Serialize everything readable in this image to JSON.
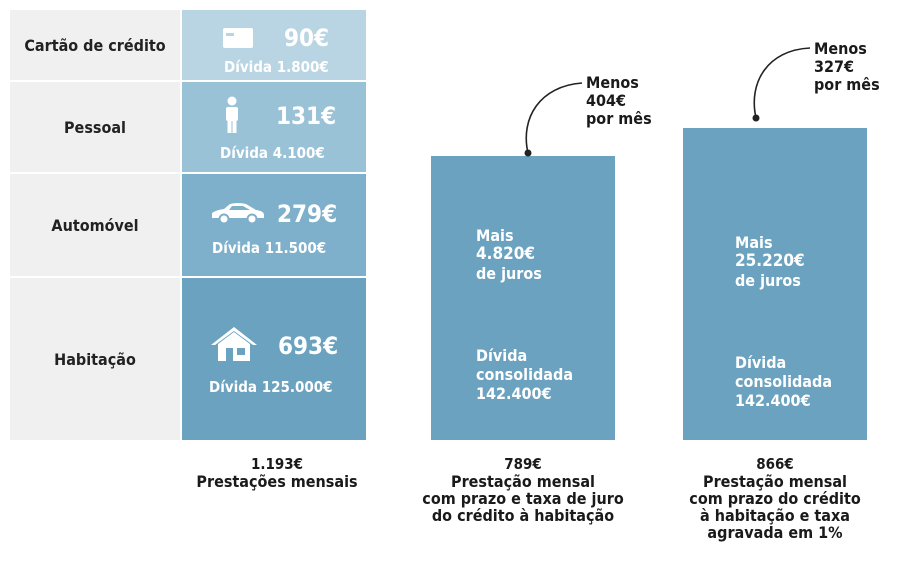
{
  "colors": {
    "cell_1": "#b9d5e3",
    "cell_2": "#9ac2d7",
    "cell_3": "#7eb0cb",
    "cell_4": "#6ba2bf",
    "bar": "#6ba2bf",
    "label_bg": "#f0f0f0"
  },
  "chart_data": {
    "type": "bar",
    "unit": "€",
    "categories": [
      "Cartão de crédito",
      "Pessoal",
      "Automóvel",
      "Habitação"
    ],
    "debts": [
      {
        "category": "Cartão de crédito",
        "monthly": 90,
        "debt": 1800,
        "icon": "credit-card-icon",
        "amount_label": "90€",
        "debt_label": "Dívida 1.800€"
      },
      {
        "category": "Pessoal",
        "monthly": 131,
        "debt": 4100,
        "icon": "person-icon",
        "amount_label": "131€",
        "debt_label": "Dívida 4.100€"
      },
      {
        "category": "Automóvel",
        "monthly": 279,
        "debt": 11500,
        "icon": "car-icon",
        "amount_label": "279€",
        "debt_label": "Dívida  11.500€"
      },
      {
        "category": "Habitação",
        "monthly": 693,
        "debt": 125000,
        "icon": "house-icon",
        "amount_label": "693€",
        "debt_label": "Dívida 125.000€"
      }
    ],
    "totals": [
      {
        "value": 1193,
        "value_label": "1.193€",
        "caption": [
          "Prestações mensais"
        ]
      },
      {
        "value": 789,
        "value_label": "789€",
        "caption": [
          "Prestação mensal",
          "com prazo e taxa de juro",
          "do crédito à habitação"
        ],
        "saving": 404,
        "saving_lines": [
          "Menos",
          "404€",
          "por mês"
        ],
        "extra_interest": 4820,
        "interest_lines": [
          "Mais",
          "4.820€",
          "de juros"
        ],
        "consolidated_debt": 142400,
        "debt_lines": [
          "Dívida",
          "consolidada",
          "142.400€"
        ]
      },
      {
        "value": 866,
        "value_label": "866€",
        "caption": [
          "Prestação mensal",
          "com prazo do crédito",
          "à habitação e taxa",
          "agravada em 1%"
        ],
        "saving": 327,
        "saving_lines": [
          "Menos",
          "327€",
          "por mês"
        ],
        "extra_interest": 25220,
        "interest_lines": [
          "Mais",
          "25.220€",
          "de juros"
        ],
        "consolidated_debt": 142400,
        "debt_lines": [
          "Dívida",
          "consolidada",
          "142.400€"
        ]
      }
    ]
  }
}
